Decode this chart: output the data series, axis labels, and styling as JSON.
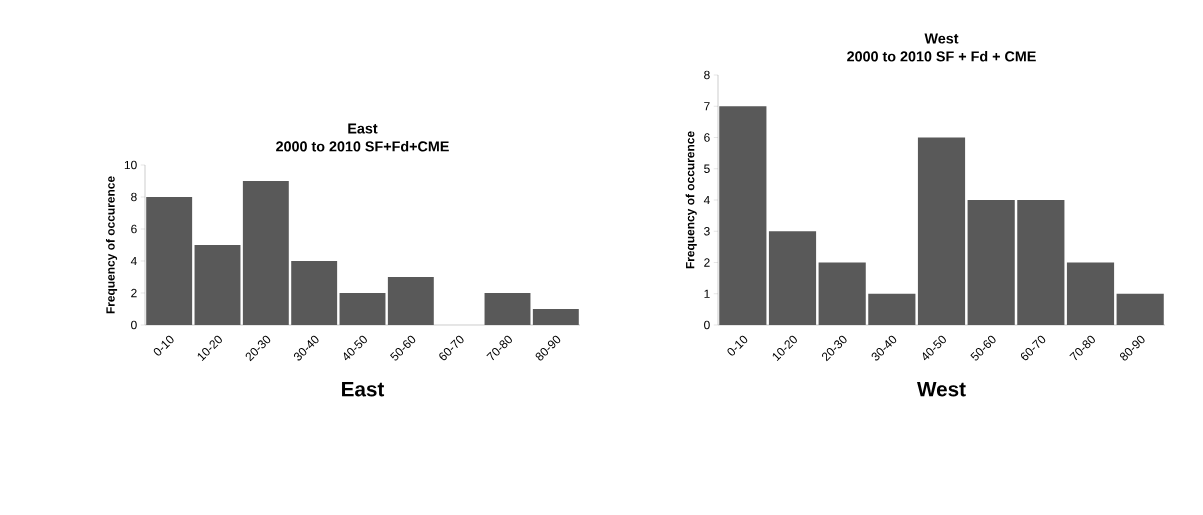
{
  "chart_data": [
    {
      "type": "bar",
      "title": "East",
      "subtitle": "2000 to 2010 SF+Fd+CME",
      "xlabel": "East",
      "ylabel": "Frequency of occurence",
      "categories": [
        "0-10",
        "10-20",
        "20-30",
        "30-40",
        "40-50",
        "50-60",
        "60-70",
        "70-80",
        "80-90"
      ],
      "values": [
        8,
        5,
        9,
        4,
        2,
        3,
        0,
        2,
        1
      ],
      "color": "#595959",
      "ylim": [
        0,
        10
      ],
      "yticks": [
        0,
        2,
        4,
        6,
        8,
        10
      ]
    },
    {
      "type": "bar",
      "title": "West",
      "subtitle": "2000 to 2010 SF + Fd + CME",
      "xlabel": "West",
      "ylabel": "Frequency of occurence",
      "categories": [
        "0-10",
        "10-20",
        "20-30",
        "30-40",
        "40-50",
        "50-60",
        "60-70",
        "70-80",
        "80-90"
      ],
      "values": [
        7,
        3,
        2,
        1,
        6,
        4,
        4,
        2,
        1
      ],
      "color": "#595959",
      "ylim": [
        0,
        8
      ],
      "yticks": [
        0,
        1,
        2,
        3,
        4,
        5,
        6,
        7,
        8
      ]
    }
  ]
}
